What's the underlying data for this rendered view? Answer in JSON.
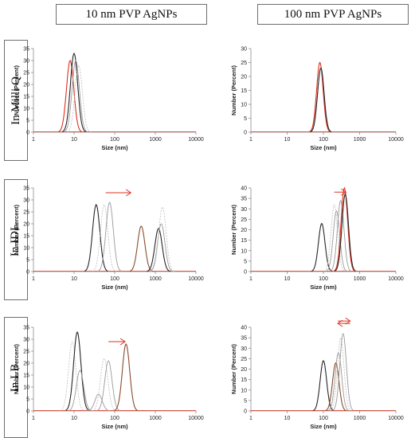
{
  "col_headers": [
    "10 nm PVP AgNPs",
    "100 nm PVP AgNPs"
  ],
  "row_headers": [
    "In Milli Q",
    "In IDL",
    "In LB"
  ],
  "colors": {
    "red": "#e0301e",
    "brown": "#8a4a2a",
    "dark": "#262626",
    "gray": "#9a9a9a",
    "light": "#c4c4c4",
    "arrow": "#e0301e",
    "axis": "#8c8c8c"
  },
  "chart_data": [
    {
      "id": "milliq-10nm",
      "type": "line",
      "xscale": "log",
      "xlim": [
        1,
        10000
      ],
      "xticks": [
        "1",
        "10",
        "100",
        "1000",
        "10000"
      ],
      "ylim": [
        0,
        35
      ],
      "yticks": [
        "0",
        "5",
        "10",
        "15",
        "20",
        "25",
        "30",
        "35"
      ],
      "xlabel": "Size (nm)",
      "ylabel": "Number (Percent)",
      "series": [
        {
          "color": "red",
          "peak_x": 8,
          "peak_y": 30,
          "dash": false
        },
        {
          "color": "dark",
          "peak_x": 10,
          "peak_y": 33,
          "dash": false
        },
        {
          "color": "gray",
          "peak_x": 11,
          "peak_y": 30,
          "dash": false
        },
        {
          "color": "light",
          "peak_x": 13,
          "peak_y": 28,
          "dash": true
        }
      ]
    },
    {
      "id": "milliq-100nm",
      "type": "line",
      "xscale": "log",
      "xlim": [
        1,
        10000
      ],
      "xticks": [
        "1",
        "10",
        "100",
        "1000",
        "10000"
      ],
      "ylim": [
        0,
        30
      ],
      "yticks": [
        "0",
        "5",
        "10",
        "15",
        "20",
        "25",
        "30"
      ],
      "xlabel": "Size (nm)",
      "ylabel": "Number (Percent)",
      "series": [
        {
          "color": "red",
          "peak_x": 80,
          "peak_y": 25,
          "dash": false
        },
        {
          "color": "gray",
          "peak_x": 85,
          "peak_y": 23,
          "dash": false
        },
        {
          "color": "dark",
          "peak_x": 85,
          "peak_y": 23,
          "dash": false
        }
      ]
    },
    {
      "id": "idl-10nm",
      "type": "line",
      "xscale": "log",
      "xlim": [
        1,
        10000
      ],
      "xticks": [
        "1",
        "10",
        "100",
        "1000",
        "10000"
      ],
      "ylim": [
        0,
        35
      ],
      "yticks": [
        "0",
        "5",
        "10",
        "15",
        "20",
        "25",
        "30",
        "35"
      ],
      "xlabel": "Size (nm)",
      "ylabel": "Number (Percent)",
      "arrow": {
        "x_from": 60,
        "x_to": 250,
        "y": 33
      },
      "series": [
        {
          "color": "dark",
          "peak_x": 35,
          "peak_y": 28,
          "dash": false
        },
        {
          "color": "light",
          "peak_x": 55,
          "peak_y": 28,
          "dash": true
        },
        {
          "color": "gray",
          "peak_x": 75,
          "peak_y": 29,
          "dash": false
        },
        {
          "color": "brown",
          "peak_x": 450,
          "peak_y": 19,
          "dash": false
        },
        {
          "color": "dark",
          "peak_x": 1200,
          "peak_y": 18,
          "dash": false
        },
        {
          "color": "gray",
          "peak_x": 1400,
          "peak_y": 20,
          "dash": false
        },
        {
          "color": "light",
          "peak_x": 1500,
          "peak_y": 27,
          "dash": true
        }
      ]
    },
    {
      "id": "idl-100nm",
      "type": "line",
      "xscale": "log",
      "xlim": [
        1,
        10000
      ],
      "xticks": [
        "1",
        "10",
        "100",
        "1000",
        "10000"
      ],
      "ylim": [
        0,
        40
      ],
      "yticks": [
        "0",
        "5",
        "10",
        "15",
        "20",
        "25",
        "30",
        "35",
        "40"
      ],
      "xlabel": "Size (nm)",
      "ylabel": "Number (Percent)",
      "arrow": {
        "x_from": 200,
        "x_to": 420,
        "y": 38
      },
      "series": [
        {
          "color": "dark",
          "peak_x": 90,
          "peak_y": 23,
          "dash": false
        },
        {
          "color": "light",
          "peak_x": 200,
          "peak_y": 32,
          "dash": true
        },
        {
          "color": "gray",
          "peak_x": 230,
          "peak_y": 29,
          "dash": false
        },
        {
          "color": "gray",
          "peak_x": 300,
          "peak_y": 34,
          "dash": false
        },
        {
          "color": "red",
          "peak_x": 380,
          "peak_y": 40,
          "dash": false
        },
        {
          "color": "dark",
          "peak_x": 400,
          "peak_y": 37,
          "dash": false
        }
      ]
    },
    {
      "id": "lb-10nm",
      "type": "line",
      "xscale": "log",
      "xlim": [
        1,
        10000
      ],
      "xticks": [
        "1",
        "10",
        "100",
        "1000",
        "10000"
      ],
      "ylim": [
        0,
        35
      ],
      "yticks": [
        "0",
        "5",
        "10",
        "15",
        "20",
        "25",
        "30",
        "35"
      ],
      "xlabel": "Size (nm)",
      "ylabel": "Number (Percent)",
      "arrow": {
        "x_from": 70,
        "x_to": 180,
        "y": 29
      },
      "series": [
        {
          "color": "light",
          "peak_x": 9,
          "peak_y": 29,
          "dash": true
        },
        {
          "color": "dark",
          "peak_x": 12,
          "peak_y": 33,
          "dash": false
        },
        {
          "color": "gray",
          "peak_x": 14,
          "peak_y": 17,
          "dash": false
        },
        {
          "color": "gray",
          "peak_x": 40,
          "peak_y": 7,
          "dash": false
        },
        {
          "color": "light",
          "peak_x": 55,
          "peak_y": 22,
          "dash": true
        },
        {
          "color": "gray",
          "peak_x": 70,
          "peak_y": 21,
          "dash": false
        },
        {
          "color": "brown",
          "peak_x": 190,
          "peak_y": 28,
          "dash": false
        }
      ]
    },
    {
      "id": "lb-100nm",
      "type": "line",
      "xscale": "log",
      "xlim": [
        1,
        10000
      ],
      "xticks": [
        "1",
        "10",
        "100",
        "1000",
        "10000"
      ],
      "ylim": [
        0,
        40
      ],
      "yticks": [
        "0",
        "5",
        "10",
        "15",
        "20",
        "25",
        "30",
        "35",
        "40"
      ],
      "xlabel": "Size (nm)",
      "ylabel": "Number (Percent)",
      "arrow": {
        "x_from": 250,
        "x_to": 550,
        "y": 43,
        "double": true
      },
      "series": [
        {
          "color": "dark",
          "peak_x": 100,
          "peak_y": 24,
          "dash": false
        },
        {
          "color": "brown",
          "peak_x": 220,
          "peak_y": 23,
          "dash": false
        },
        {
          "color": "gray",
          "peak_x": 260,
          "peak_y": 28,
          "dash": false
        },
        {
          "color": "light",
          "peak_x": 300,
          "peak_y": 35,
          "dash": true
        },
        {
          "color": "gray",
          "peak_x": 350,
          "peak_y": 37,
          "dash": false
        }
      ]
    }
  ]
}
